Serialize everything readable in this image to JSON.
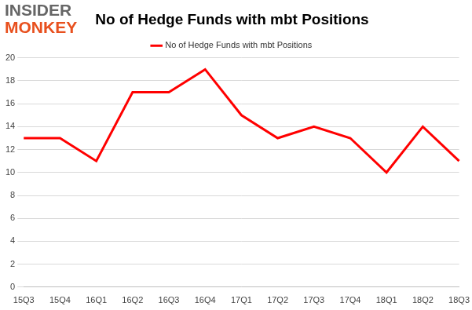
{
  "chart_data": {
    "type": "line",
    "title": "No of Hedge Funds with mbt Positions",
    "annotations": [
      "INSIDER",
      "MONKEY"
    ],
    "categories": [
      "15Q3",
      "15Q4",
      "16Q1",
      "16Q2",
      "16Q3",
      "16Q4",
      "17Q1",
      "17Q2",
      "17Q3",
      "17Q4",
      "18Q1",
      "18Q2",
      "18Q3"
    ],
    "series": [
      {
        "name": "No of Hedge Funds with mbt Positions",
        "color": "#ff0000",
        "values": [
          13,
          13,
          11,
          17,
          17,
          19,
          15,
          13,
          14,
          13,
          10,
          14,
          11
        ]
      }
    ],
    "ylim": [
      0,
      20
    ],
    "yticks": [
      0,
      2,
      4,
      6,
      8,
      10,
      12,
      14,
      16,
      18,
      20
    ],
    "grid": true,
    "legend": "top"
  }
}
